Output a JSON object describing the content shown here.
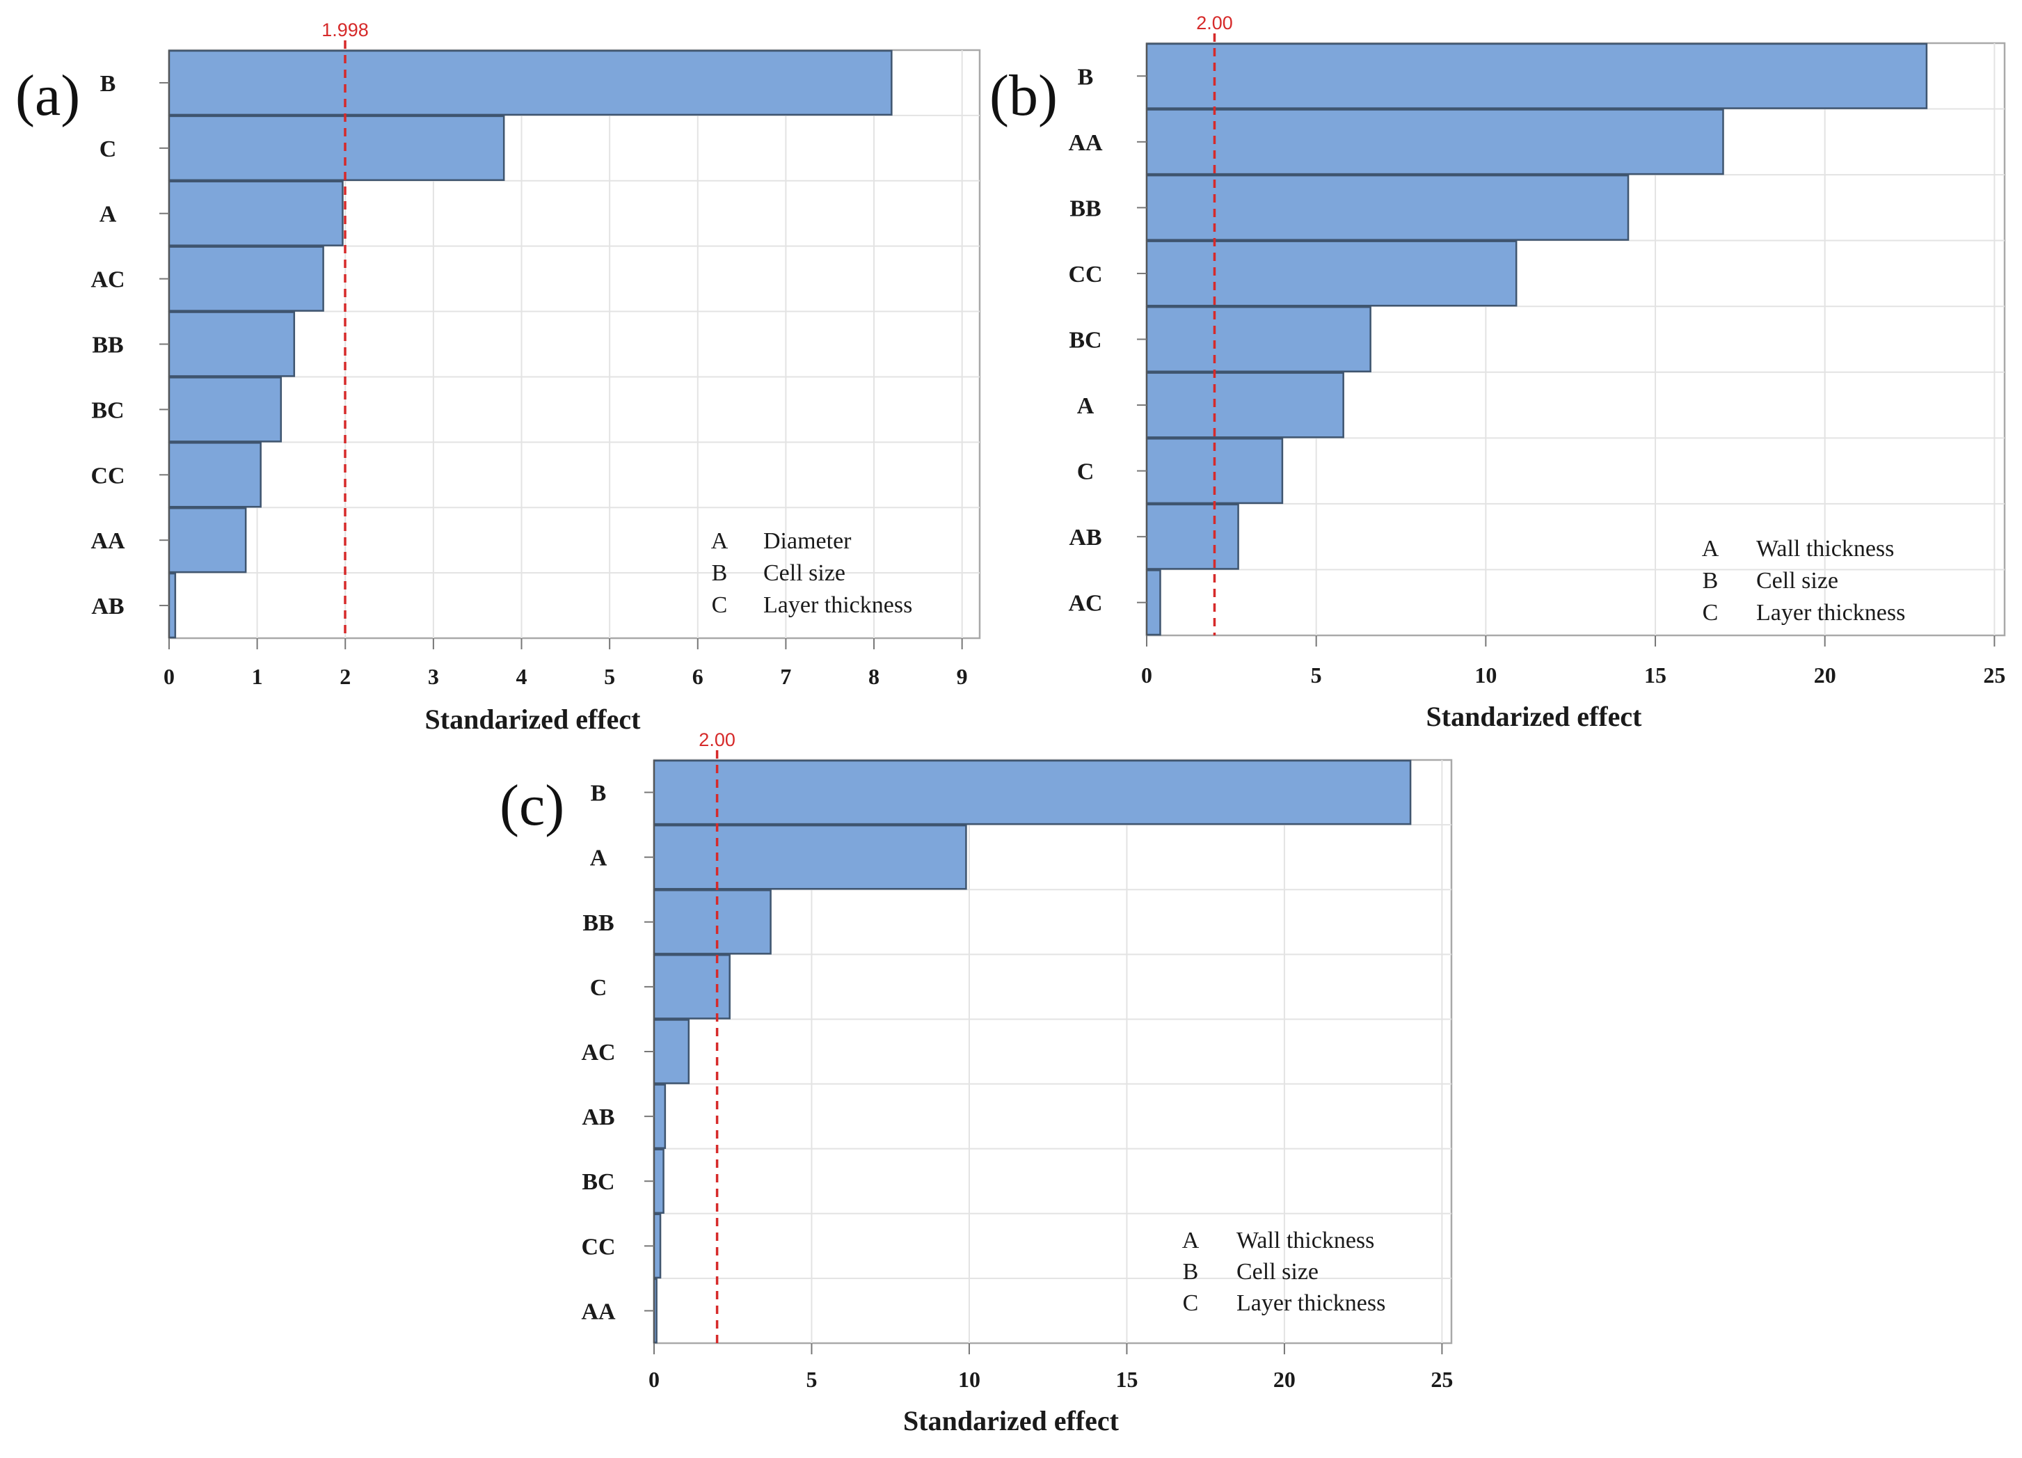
{
  "colors": {
    "bar_fill": "#7ea6da",
    "bar_stroke": "#3f556f",
    "reference_line": "#d62a2a",
    "grid": "#e3e3e3",
    "frame": "#a9a9a9"
  },
  "chart_data": [
    {
      "type": "bar",
      "orientation": "horizontal",
      "panel_label": "(a)",
      "categories": [
        "B",
        "C",
        "A",
        "AC",
        "BB",
        "BC",
        "CC",
        "AA",
        "AB"
      ],
      "values": [
        8.2,
        3.8,
        1.97,
        1.75,
        1.42,
        1.27,
        1.04,
        0.87,
        0.07
      ],
      "xlabel": "Standarized effect",
      "xlim": [
        0,
        9.2
      ],
      "xticks": [
        0,
        1,
        2,
        3,
        4,
        5,
        6,
        7,
        8,
        9
      ],
      "reference_value": 1.998,
      "reference_label": "1.998",
      "grid": true,
      "legend_position": "bottom-right",
      "legend": [
        {
          "key": "A",
          "label": "Diameter"
        },
        {
          "key": "B",
          "label": "Cell size"
        },
        {
          "key": "C",
          "label": "Layer thickness"
        }
      ]
    },
    {
      "type": "bar",
      "orientation": "horizontal",
      "panel_label": "(b)",
      "categories": [
        "B",
        "AA",
        "BB",
        "CC",
        "BC",
        "A",
        "C",
        "AB",
        "AC"
      ],
      "values": [
        23.0,
        17.0,
        14.2,
        10.9,
        6.6,
        5.8,
        4.0,
        2.7,
        0.4
      ],
      "xlabel": "Standarized effect",
      "xlim": [
        0,
        25.3
      ],
      "xticks": [
        0,
        5,
        10,
        15,
        20,
        25
      ],
      "reference_value": 2.0,
      "reference_label": "2.00",
      "grid": true,
      "legend_position": "bottom-right",
      "legend": [
        {
          "key": "A",
          "label": "Wall thickness"
        },
        {
          "key": "B",
          "label": "Cell size"
        },
        {
          "key": "C",
          "label": "Layer thickness"
        }
      ]
    },
    {
      "type": "bar",
      "orientation": "horizontal",
      "panel_label": "(c)",
      "categories": [
        "B",
        "A",
        "BB",
        "C",
        "AC",
        "AB",
        "BC",
        "CC",
        "AA"
      ],
      "values": [
        24.0,
        9.9,
        3.7,
        2.4,
        1.1,
        0.35,
        0.3,
        0.2,
        0.08
      ],
      "xlabel": "Standarized effect",
      "xlim": [
        0,
        25.3
      ],
      "xticks": [
        0,
        5,
        10,
        15,
        20,
        25
      ],
      "reference_value": 2.0,
      "reference_label": "2.00",
      "grid": true,
      "legend_position": "bottom-right",
      "legend": [
        {
          "key": "A",
          "label": "Wall thickness"
        },
        {
          "key": "B",
          "label": "Cell size"
        },
        {
          "key": "C",
          "label": "Layer thickness"
        }
      ]
    }
  ]
}
